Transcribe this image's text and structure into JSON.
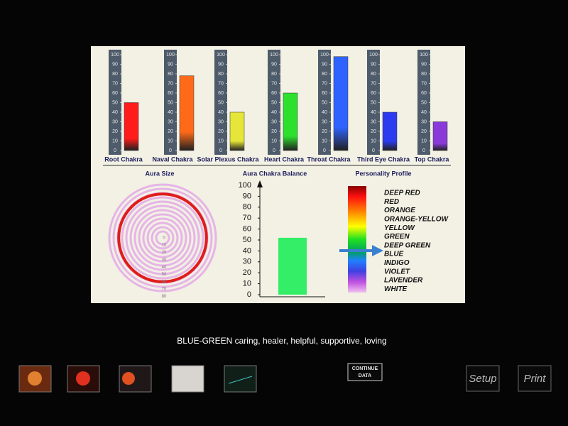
{
  "chart_data": [
    {
      "type": "bar",
      "categories": [
        "Root Chakra",
        "Naval Chakra",
        "Solar Plexus Chakra",
        "Heart Chakra",
        "Throat Chakra",
        "Third Eye Chakra",
        "Top Chakra"
      ],
      "values": [
        50,
        78,
        40,
        60,
        98,
        40,
        30
      ],
      "colors": [
        "#ff1c1c",
        "#ff6a1a",
        "#e6e63a",
        "#2ee02e",
        "#2f63ff",
        "#2b3cf0",
        "#8a3ad8"
      ],
      "ylim": [
        0,
        100
      ],
      "yticks": [
        0,
        10,
        20,
        30,
        40,
        50,
        60,
        70,
        80,
        90,
        100
      ]
    },
    {
      "type": "bar",
      "title": "Aura Chakra Balance",
      "values": [
        52
      ],
      "color": "#33ee66",
      "ylim": [
        0,
        100
      ],
      "yticks": [
        0,
        10,
        20,
        30,
        40,
        50,
        60,
        70,
        80,
        90,
        100
      ]
    }
  ],
  "aura_size": {
    "title": "Aura Size",
    "value": 60,
    "ticks": [
      0,
      10,
      20,
      30,
      40,
      50,
      60,
      70,
      80
    ]
  },
  "personality_profile": {
    "title": "Personality Profile",
    "colors": [
      "DEEP RED",
      "RED",
      "ORANGE",
      "ORANGE-YELLOW",
      "YELLOW",
      "GREEN",
      "DEEP GREEN",
      "BLUE",
      "INDIGO",
      "VIOLET",
      "LAVENDER",
      "WHITE"
    ]
  },
  "message": "BLUE-GREEN caring, healer, helpful, supportive, loving",
  "buttons": {
    "continue": [
      "CONTINUE",
      "DATA"
    ],
    "setup": "Setup",
    "print": "Print"
  }
}
